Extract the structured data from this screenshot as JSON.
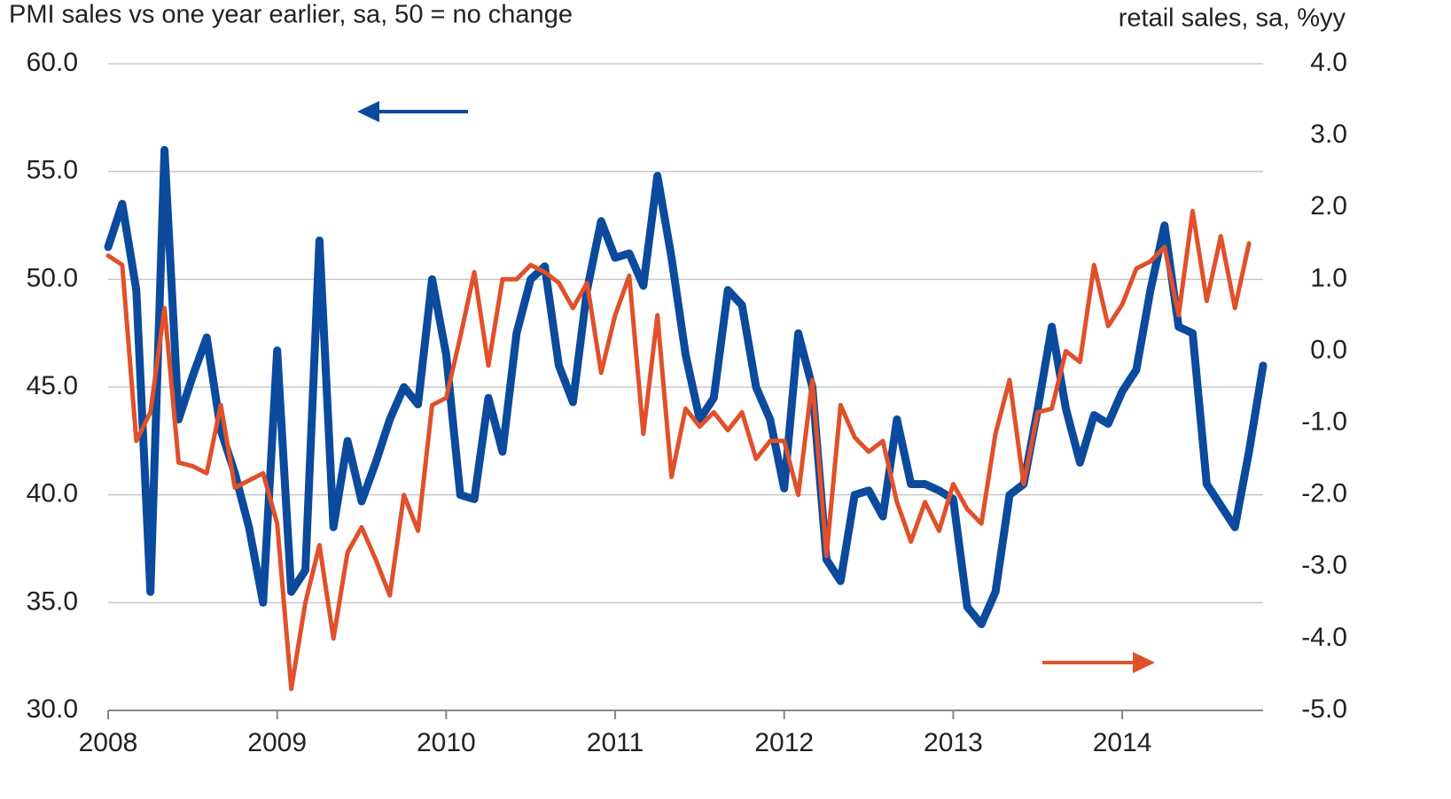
{
  "chart_data": {
    "type": "line",
    "ylabel": "PMI sales vs one year earlier, sa, 50 = no change",
    "y2label": "retail sales, sa, %yy",
    "categories": [
      "2008",
      null,
      null,
      null,
      null,
      null,
      null,
      null,
      null,
      null,
      null,
      null,
      "2009",
      null,
      null,
      null,
      null,
      null,
      null,
      null,
      null,
      null,
      null,
      null,
      "2010",
      null,
      null,
      null,
      null,
      null,
      null,
      null,
      null,
      null,
      null,
      null,
      "2011",
      null,
      null,
      null,
      null,
      null,
      null,
      null,
      null,
      null,
      null,
      null,
      "2012",
      null,
      null,
      null,
      null,
      null,
      null,
      null,
      null,
      null,
      null,
      null,
      "2013",
      null,
      null,
      null,
      null,
      null,
      null,
      null,
      null,
      null,
      null,
      null,
      "2014",
      null,
      null,
      null,
      null,
      null,
      null,
      null,
      null,
      null,
      null
    ],
    "series": [
      {
        "color": "#0b4a9c",
        "axis": "y",
        "values": [
          51.5,
          53.5,
          49.5,
          35.5,
          56.0,
          43.5,
          45.5,
          47.3,
          43.0,
          41.0,
          38.5,
          35.0,
          46.7,
          35.5,
          36.5,
          51.8,
          38.5,
          42.5,
          39.7,
          41.5,
          43.5,
          45.0,
          44.2,
          50.0,
          46.5,
          40.0,
          39.8,
          44.5,
          42.0,
          47.5,
          50.0,
          50.6,
          46.0,
          44.3,
          49.5,
          52.7,
          51.0,
          51.2,
          49.7,
          54.8,
          51.0,
          46.5,
          43.5,
          44.5,
          49.5,
          48.8,
          45.0,
          43.5,
          40.3,
          47.5,
          45.0,
          37.0,
          36.0,
          40.0,
          40.2,
          39.0,
          43.5,
          40.5,
          40.5,
          40.2,
          39.8,
          34.8,
          34.0,
          35.5,
          40.0,
          40.5,
          44.0,
          47.8,
          44.0,
          41.5,
          43.7,
          43.3,
          44.8,
          45.8,
          49.5,
          52.5,
          47.8,
          47.5,
          40.5,
          39.5,
          38.5,
          42.0,
          46.0
        ]
      },
      {
        "color": "#e0502a",
        "axis": "y2",
        "values": [
          1.33,
          1.2,
          -1.25,
          -0.85,
          0.6,
          -1.55,
          -1.6,
          -1.7,
          -0.75,
          -1.9,
          -1.8,
          -1.7,
          -2.4,
          -4.7,
          -3.5,
          -2.7,
          -4.0,
          -2.8,
          -2.45,
          -2.9,
          -3.4,
          -2.0,
          -2.5,
          -0.75,
          -0.65,
          0.2,
          1.1,
          -0.2,
          1.0,
          1.0,
          1.2,
          1.1,
          0.95,
          0.6,
          0.95,
          -0.3,
          0.5,
          1.05,
          -1.15,
          0.5,
          -1.75,
          -0.8,
          -1.05,
          -0.85,
          -1.1,
          -0.85,
          -1.5,
          -1.25,
          -1.25,
          -2.0,
          -0.4,
          -2.85,
          -0.75,
          -1.2,
          -1.4,
          -1.25,
          -2.1,
          -2.65,
          -2.1,
          -2.5,
          -1.85,
          -2.2,
          -2.4,
          -1.15,
          -0.4,
          -1.85,
          -0.85,
          -0.8,
          0.0,
          -0.15,
          1.2,
          0.35,
          0.65,
          1.15,
          1.25,
          1.45,
          0.5,
          1.95,
          0.7,
          1.6,
          0.6,
          1.5,
          null
        ]
      }
    ],
    "ylim": [
      30,
      60
    ],
    "yticks": [
      {
        "value": 30,
        "label": "30.0"
      },
      {
        "value": 35,
        "label": "35.0"
      },
      {
        "value": 40,
        "label": "40.0"
      },
      {
        "value": 45,
        "label": "45.0"
      },
      {
        "value": 50,
        "label": "50.0"
      },
      {
        "value": 55,
        "label": "55.0"
      },
      {
        "value": 60,
        "label": "60.0"
      }
    ],
    "y2lim": [
      -5,
      4
    ],
    "y2ticks": [
      {
        "value": -5,
        "label": "-5.0"
      },
      {
        "value": -4,
        "label": "-4.0"
      },
      {
        "value": -3,
        "label": "-3.0"
      },
      {
        "value": -2,
        "label": "-2.0"
      },
      {
        "value": -1,
        "label": "-1.0"
      },
      {
        "value": 0,
        "label": "0.0"
      },
      {
        "value": 1,
        "label": "1.0"
      },
      {
        "value": 2,
        "label": "2.0"
      },
      {
        "value": 3,
        "label": "3.0"
      },
      {
        "value": 4,
        "label": "4.0"
      }
    ],
    "grid": true
  }
}
